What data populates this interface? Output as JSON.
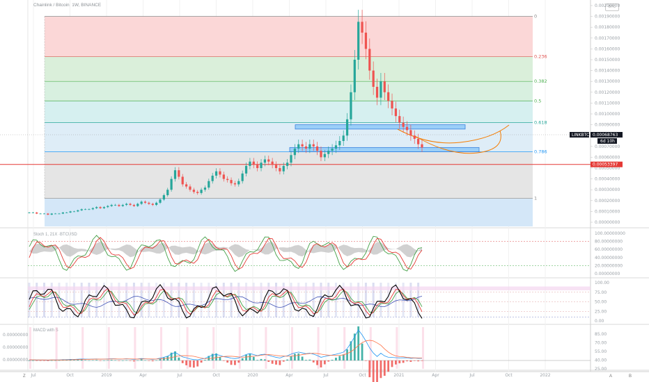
{
  "symbol_title": "Chainlink / Bitcoin, 1W, BINANCE",
  "context_badge": "BTC",
  "indicators": {
    "stoch_rsi_title": "Stoch 1, 21X ·BTCUSD",
    "macd_title": "MACD with S"
  },
  "bottom_corner_left": "Z",
  "bottom_corner_right": [
    "A",
    "B"
  ],
  "chart_data": [
    {
      "type": "candlestick",
      "title": "Chainlink / Bitcoin, 1W, BINANCE",
      "x_tick_labels": [
        "Jul",
        "Oct",
        "2019",
        "Apr",
        "Jul",
        "Oct",
        "2020",
        "Apr",
        "Jul",
        "Oct",
        "2021",
        "Apr",
        "Jul",
        "Oct",
        "2022"
      ],
      "y_axis_labels": [
        "0.00200000",
        "0.00190000",
        "0.00180000",
        "0.00170000",
        "0.00160000",
        "0.00150000",
        "0.00140000",
        "0.00130000",
        "0.00120000",
        "0.00110000",
        "0.00100000",
        "0.00090000",
        "0.00080000",
        "0.00070000",
        "0.00060000",
        "0.00050000",
        "0.00040000",
        "0.00030000",
        "0.00020000",
        "0.00010000",
        "0.00000000"
      ],
      "ylim": [
        0,
        0.002
      ],
      "fibonacci": [
        {
          "level": "0",
          "price": 0.0019
        },
        {
          "level": "0.236",
          "price": 0.00153
        },
        {
          "level": "0.382",
          "price": 0.0013
        },
        {
          "level": "0.5",
          "price": 0.00112
        },
        {
          "level": "0.618",
          "price": 0.00092
        },
        {
          "level": "0.786",
          "price": 0.00065
        },
        {
          "level": "1",
          "price": 0.00022
        }
      ],
      "current_price": {
        "label": "LINKBTC",
        "value": "0.00068763",
        "countdown": "6d 10h"
      },
      "support_line": {
        "value": "0.00053397",
        "price": 0.00053397
      },
      "annotated_zones": [
        {
          "from": 0.00086,
          "to": 0.0009
        },
        {
          "from": 0.00065,
          "to": 0.00069
        }
      ],
      "close_series": [
        9e-05,
        9e-05,
        8e-05,
        8e-05,
        8e-05,
        7e-05,
        8e-05,
        8e-05,
        8e-05,
        9e-05,
        9e-05,
        0.0001,
        0.0001,
        0.00011,
        0.00012,
        0.00012,
        0.00012,
        0.00013,
        0.00014,
        0.00013,
        0.00014,
        0.00015,
        0.00016,
        0.00016,
        0.00015,
        0.00016,
        0.00017,
        0.00016,
        0.00015,
        0.00017,
        0.00019,
        0.00018,
        0.00017,
        0.00016,
        0.00018,
        0.00021,
        0.00025,
        0.0003,
        0.0004,
        0.00048,
        0.00042,
        0.00035,
        0.00033,
        0.0003,
        0.00028,
        0.00027,
        0.0003,
        0.00032,
        0.00038,
        0.00043,
        0.00047,
        0.00044,
        0.0004,
        0.00039,
        0.00036,
        0.00035,
        0.00038,
        0.00045,
        0.00052,
        0.00056,
        0.00053,
        0.0005,
        0.00055,
        0.00058,
        0.00056,
        0.00053,
        0.0005,
        0.00047,
        0.00052,
        0.00055,
        0.00062,
        0.00068,
        0.00072,
        0.0007,
        0.00068,
        0.00072,
        0.0007,
        0.00066,
        0.0006,
        0.00063,
        0.00066,
        0.00068,
        0.00071,
        0.00075,
        0.0008,
        0.00095,
        0.0012,
        0.0015,
        0.00185,
        0.00175,
        0.0016,
        0.0014,
        0.00125,
        0.00115,
        0.0013,
        0.0012,
        0.00112,
        0.00105,
        0.00098,
        0.00092,
        0.00088,
        0.00085,
        0.0008,
        0.00077,
        0.00072,
        0.00069
      ]
    },
    {
      "type": "line",
      "title": "Stoch 1, 21X ·BTCUSD",
      "y_axis_labels": [
        "100.00000000",
        "80.00000000",
        "60.00000000",
        "40.00000000",
        "20.00000000",
        "0.00000000"
      ],
      "ylim": [
        0,
        100
      ]
    },
    {
      "type": "line",
      "title": "",
      "y_axis_labels": [
        "100.00",
        "75.00",
        "50.00",
        "25.00",
        "0.00"
      ],
      "ylim": [
        0,
        100
      ]
    },
    {
      "type": "bar",
      "title": "MACD with S",
      "y_axis_labels_left": [
        "0.00000000",
        "0.00000000",
        "0.00000000"
      ],
      "y_axis_labels_right": [
        "85.00",
        "70.00",
        "55.00",
        "40.00",
        "25.00"
      ]
    }
  ]
}
